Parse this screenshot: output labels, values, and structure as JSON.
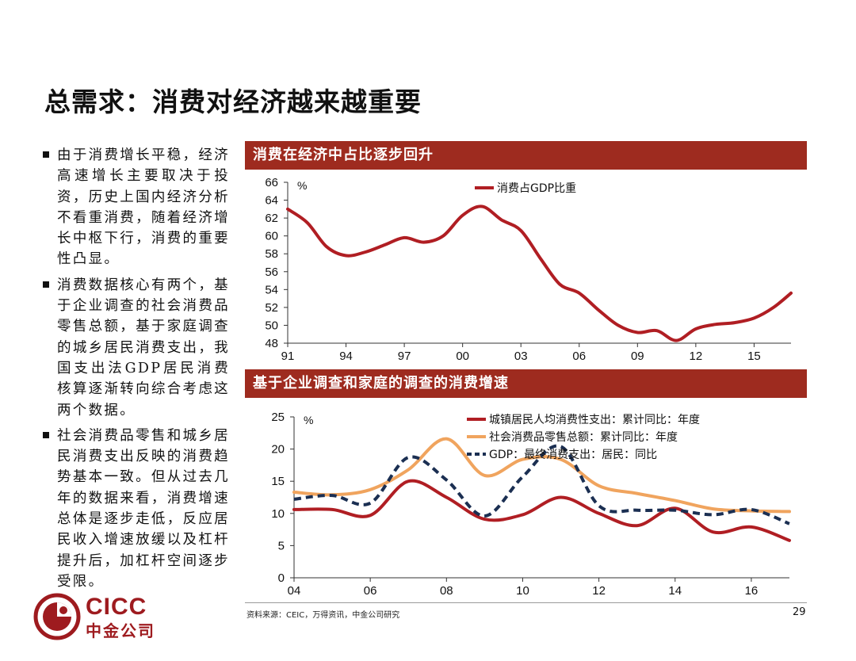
{
  "title": "总需求：消费对经济越来越重要",
  "colors": {
    "banner": "#9e2b1f",
    "accent": "#b01e23",
    "orange": "#f0a45e",
    "navy": "#1b2f52"
  },
  "bullets": [
    "由于消费增长平稳，经济高速增长主要取决于投资，历史上国内经济分析不看重消费，随着经济增长中枢下行，消费的重要性凸显。",
    "消费数据核心有两个，基于企业调查的社会消费品零售总额，基于家庭调查的城乡居民消费支出，我国支出法GDP居民消费核算逐渐转向综合考虑这两个数据。",
    "社会消费品零售和城乡居民消费支出反映的消费趋势基本一致。但从过去几年的数据来看，消费增速总体是逐步走低，反应居民收入增速放缓以及杠杆提升后，加杠杆空间逐步受限。"
  ],
  "chart_data": [
    {
      "type": "line",
      "title": "消费在经济中占比逐步回升",
      "ylabel": "%",
      "ylim": [
        48,
        66
      ],
      "yticks": [
        48,
        50,
        52,
        54,
        56,
        58,
        60,
        62,
        64,
        66
      ],
      "xlim": [
        1991,
        2016.9
      ],
      "xticks": [
        1991,
        1994,
        1997,
        2000,
        2003,
        2006,
        2009,
        2012,
        2015
      ],
      "xtick_labels": [
        "91",
        "94",
        "97",
        "00",
        "03",
        "06",
        "09",
        "12",
        "15"
      ],
      "legend_position": "top-center",
      "series": [
        {
          "name": "消费占GDP比重",
          "color": "#b01e23",
          "style": "solid",
          "x": [
            1991,
            1992,
            1993,
            1994,
            1995,
            1996,
            1997,
            1998,
            1999,
            2000,
            2001,
            2002,
            2003,
            2004,
            2005,
            2006,
            2007,
            2008,
            2009,
            2010,
            2011,
            2012,
            2013,
            2014,
            2015,
            2016,
            2016.9
          ],
          "y": [
            63.0,
            61.5,
            58.8,
            57.8,
            58.2,
            59.0,
            59.8,
            59.3,
            60.0,
            62.3,
            63.3,
            61.8,
            60.6,
            57.5,
            54.6,
            53.6,
            51.7,
            50.0,
            49.2,
            49.4,
            48.3,
            49.6,
            50.1,
            50.3,
            50.8,
            52.0,
            53.6
          ]
        }
      ]
    },
    {
      "type": "line",
      "title": "基于企业调查和家庭的调查的消费增速",
      "ylabel": "%",
      "ylim": [
        0,
        25
      ],
      "yticks": [
        0,
        5,
        10,
        15,
        20,
        25
      ],
      "xlim": [
        2004,
        2017
      ],
      "xticks": [
        2004,
        2006,
        2008,
        2010,
        2012,
        2014,
        2016
      ],
      "xtick_labels": [
        "04",
        "06",
        "08",
        "10",
        "12",
        "14",
        "16"
      ],
      "legend_position": "top-right",
      "series": [
        {
          "name": "城镇居民人均消费性支出：累计同比：年度",
          "color": "#b01e23",
          "style": "solid",
          "x": [
            2004,
            2005,
            2006,
            2007,
            2008,
            2009,
            2010,
            2011,
            2012,
            2013,
            2014,
            2015,
            2016,
            2017
          ],
          "y": [
            10.6,
            10.6,
            9.7,
            15.0,
            12.5,
            9.1,
            9.8,
            12.5,
            10.0,
            8.1,
            10.8,
            7.1,
            7.9,
            5.8
          ]
        },
        {
          "name": "社会消费品零售总额：累计同比：年度",
          "color": "#f0a45e",
          "style": "solid",
          "x": [
            2004,
            2005,
            2006,
            2007,
            2008,
            2009,
            2010,
            2011,
            2012,
            2013,
            2014,
            2015,
            2016,
            2017
          ],
          "y": [
            13.3,
            12.9,
            13.7,
            16.8,
            21.6,
            15.9,
            18.4,
            18.4,
            14.3,
            13.1,
            12.0,
            10.7,
            10.4,
            10.3
          ]
        },
        {
          "name": "GDP：最终消费支出：居民：同比",
          "color": "#1b2f52",
          "style": "dashed",
          "x": [
            2004,
            2005,
            2006,
            2007,
            2008,
            2009,
            2010,
            2011,
            2012,
            2013,
            2014,
            2015,
            2016,
            2017
          ],
          "y": [
            12.2,
            12.8,
            11.6,
            18.7,
            15.2,
            9.6,
            15.7,
            20.4,
            11.2,
            10.5,
            10.5,
            9.8,
            10.6,
            8.4
          ]
        }
      ]
    }
  ],
  "source": "资料来源：CEIC，万得资讯，中金公司研究",
  "page_number": "29",
  "logo": {
    "en": "CICC",
    "cn": "中金公司"
  }
}
